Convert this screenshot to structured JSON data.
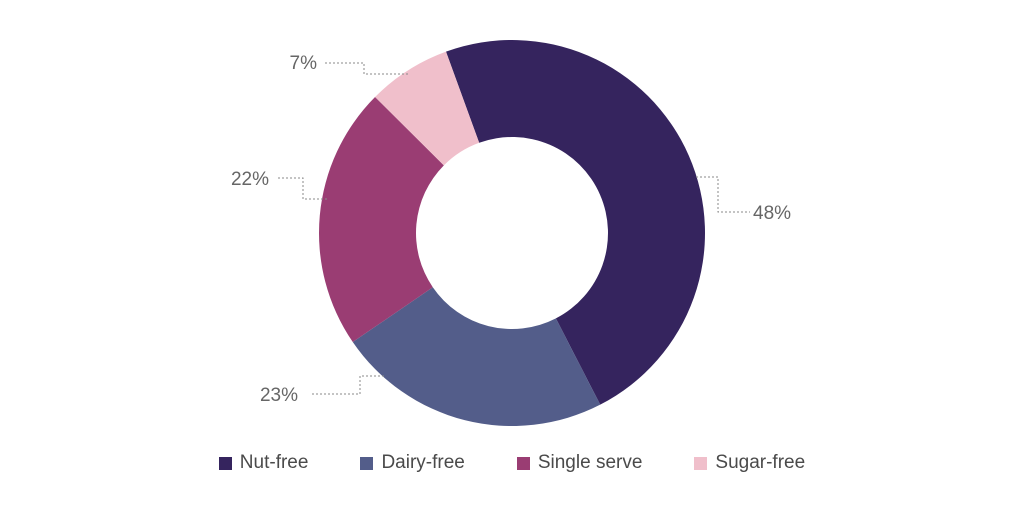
{
  "chart_data": {
    "type": "pie",
    "donut": true,
    "legend_position": "bottom",
    "slices": [
      {
        "name": "Nut-free",
        "value": 48,
        "label": "48%",
        "color": "#35245e"
      },
      {
        "name": "Dairy-free",
        "value": 23,
        "label": "23%",
        "color": "#535d8a"
      },
      {
        "name": "Single serve",
        "value": 22,
        "label": "22%",
        "color": "#9a3d73"
      },
      {
        "name": "Sugar-free",
        "value": 7,
        "label": "7%",
        "color": "#f0bfcb"
      }
    ]
  }
}
